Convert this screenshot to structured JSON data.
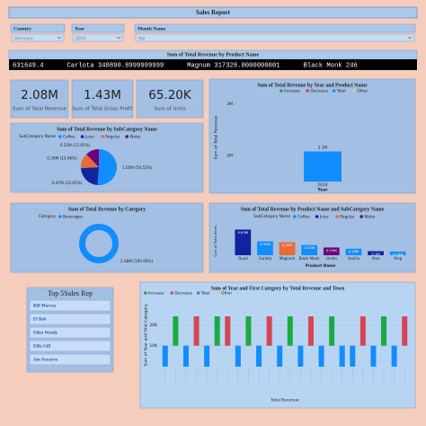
{
  "header": {
    "title": "Sales Report"
  },
  "filters": [
    {
      "label": "Country",
      "value": "Germany"
    },
    {
      "label": "Year",
      "value": "2014"
    },
    {
      "label": "Month Name",
      "value": "Apr"
    }
  ],
  "ticker": {
    "title": "Sum of Total Revenue by Product Name",
    "text": "631649.4      Carlota 340890.8999999999      Magnum 317328.0000000001      Black Monk 246"
  },
  "kpis": [
    {
      "value": "2.08M",
      "label": "Sum of Total Revenue"
    },
    {
      "value": "1.43M",
      "label": "Sum of Total Gross Profit"
    },
    {
      "value": "65.20K",
      "label": "Sum of Units"
    }
  ],
  "chart_data": [
    {
      "type": "pie",
      "title": "Sum of Total Revenue by SubCategory Name",
      "legend_title": "SubCategory Name",
      "categories": [
        "Coffee",
        "Juice",
        "Regular",
        "Water"
      ],
      "values": [
        50.55,
        22.65,
        13.46,
        12.05
      ],
      "value_labels": [
        "1.05M (50.55%)",
        "0.47M (22.65%)",
        "0.28M (13.46%)",
        "0.25M (12.05%)"
      ],
      "colors": [
        "#118dff",
        "#12239e",
        "#e66c37",
        "#6b007b"
      ]
    },
    {
      "type": "column",
      "title": "Sum of Total Revenue by Year and Product Name",
      "legend": [
        "Increase",
        "Decrease",
        "Total",
        "Other"
      ],
      "legend_colors": [
        "#1aab40",
        "#d64554",
        "#118dff",
        "#f5c869"
      ],
      "y_label": "Sum of Total Revenue",
      "x_label": "Year",
      "categories": [
        "2014"
      ],
      "values": [
        2.08
      ],
      "value_labels": [
        "2.1M"
      ],
      "color": "#118dff",
      "ylim": [
        1.5,
        3.2
      ],
      "yticks": [
        {
          "value": 2,
          "label": "2M"
        },
        {
          "value": 3,
          "label": "3M"
        }
      ]
    },
    {
      "type": "donut",
      "title": "Sum of Total Revenue by Category",
      "legend_title": "Category",
      "categories": [
        "Beverages"
      ],
      "values": [
        100
      ],
      "value_labels": [
        "2.08M (100.00%)"
      ],
      "colors": [
        "#118dff"
      ]
    },
    {
      "type": "bar",
      "title": "Sum of Total Revenue by Product Name and SubCategory Name",
      "legend_title": "SubCategory Name",
      "legend": [
        "Coffee",
        "Juice",
        "Regular",
        "Water"
      ],
      "legend_colors": [
        "#118dff",
        "#12239e",
        "#e66c37",
        "#6b007b"
      ],
      "y_label": "Sum of Total Reve...",
      "x_label": "Product Name",
      "categories": [
        "Quad",
        "Carlota",
        "Magnum",
        "Black Monk",
        "Limbo",
        "Vanilla",
        "Aloe",
        "Ring"
      ],
      "values": [
        0.63,
        0.34,
        0.32,
        0.25,
        0.19,
        0.16,
        0.1,
        0.09
      ],
      "value_labels": [
        "0.63M",
        "0.34M",
        "0.32M",
        "0.25M",
        "0.19M",
        "0.16M",
        "0.1M",
        "0.09M"
      ],
      "colors": [
        "#12239e",
        "#118dff",
        "#e66c37",
        "#118dff",
        "#6b007b",
        "#118dff",
        "#12239e",
        "#118dff"
      ],
      "ylim": [
        0,
        0.75
      ]
    },
    {
      "type": "waterfall",
      "title": "Sum of Year and First Category by Total Revenue and Town",
      "legend": [
        "Increase",
        "Decrease",
        "Total",
        "Other"
      ],
      "legend_colors": [
        "#1aab40",
        "#d64554",
        "#118dff",
        "#f5c869"
      ],
      "y_label": "Sum of Year and First Category",
      "x_label": "Total Revenue",
      "ylim": [
        0,
        30000
      ],
      "yticks": [
        {
          "value": 10000,
          "label": "10K"
        },
        {
          "value": 20000,
          "label": "20K"
        }
      ],
      "kind": [
        "Total",
        "Increase",
        "Total",
        "Decrease",
        "Total",
        "Increase",
        "Decrease",
        "Total",
        "Increase",
        "Total",
        "Decrease",
        "Total",
        "Increase",
        "Total",
        "Decrease",
        "Total",
        "Increase",
        "Total",
        "Total",
        "Decrease",
        "Total",
        "Increase",
        "Total",
        "Decrease"
      ],
      "start": [
        0,
        10000,
        0,
        24000,
        0,
        10000,
        24000,
        0,
        10000,
        0,
        24000,
        0,
        10000,
        0,
        24000,
        0,
        10000,
        0,
        0,
        24000,
        0,
        10000,
        0,
        24000
      ],
      "end": [
        10000,
        24000,
        10000,
        10000,
        10000,
        24000,
        10000,
        10000,
        24000,
        10000,
        10000,
        10000,
        24000,
        10000,
        10000,
        10000,
        24000,
        10000,
        10000,
        10000,
        10000,
        24000,
        10000,
        10000
      ]
    }
  ],
  "sales_rep": {
    "title": "Top 5Sales Rep",
    "items": [
      "Bill Murray",
      "El Bob",
      "Ellen Wendy",
      "Ellie Gill",
      "Jon Navarro"
    ]
  }
}
